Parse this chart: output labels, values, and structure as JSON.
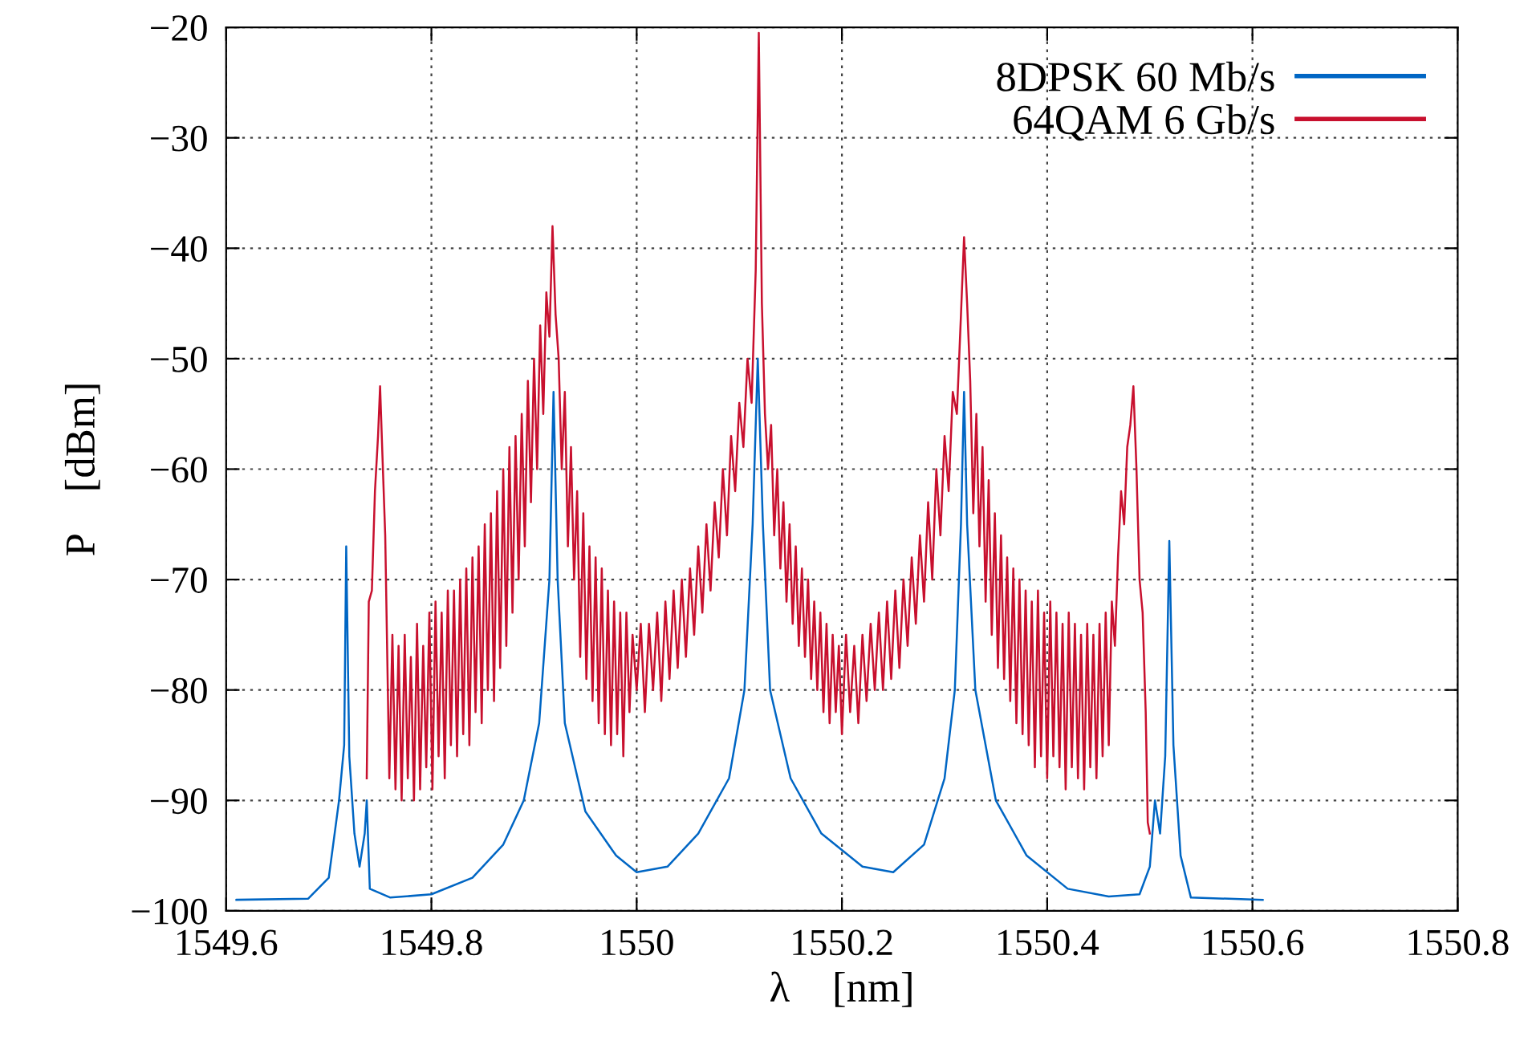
{
  "chart_data": {
    "type": "line",
    "xlabel": "λ    [nm]",
    "ylabel": "P    [dBm]",
    "xlim": [
      1549.6,
      1550.8
    ],
    "xticks": [
      1549.6,
      1549.8,
      1550,
      1550.2,
      1550.4,
      1550.6,
      1550.8
    ],
    "ylim": [
      -100,
      -20
    ],
    "yticks": [
      -100,
      -90,
      -80,
      -70,
      -60,
      -50,
      -40,
      -30,
      -20
    ],
    "grid": true,
    "legend": "top right",
    "line_style": "solid",
    "marker": "none",
    "series": [
      {
        "name": "8DPSK 60 Mb/s",
        "color": "#0066c4",
        "x": [
          1549.61,
          1549.68,
          1549.7,
          1549.71,
          1549.715,
          1549.717,
          1549.72,
          1549.725,
          1549.73,
          1549.735,
          1549.737,
          1549.74,
          1549.76,
          1549.8,
          1549.84,
          1549.87,
          1549.89,
          1549.905,
          1549.915,
          1549.919,
          1549.923,
          1549.93,
          1549.95,
          1549.98,
          1550.0,
          1550.03,
          1550.06,
          1550.09,
          1550.105,
          1550.113,
          1550.118,
          1550.123,
          1550.13,
          1550.15,
          1550.18,
          1550.22,
          1550.25,
          1550.28,
          1550.3,
          1550.31,
          1550.316,
          1550.319,
          1550.322,
          1550.33,
          1550.35,
          1550.38,
          1550.42,
          1550.46,
          1550.49,
          1550.5,
          1550.505,
          1550.51,
          1550.515,
          1550.519,
          1550.523,
          1550.53,
          1550.54,
          1550.61
        ],
        "values": [
          -99,
          -98.9,
          -97,
          -90,
          -85,
          -67,
          -86,
          -93,
          -96,
          -93,
          -90,
          -98,
          -98.8,
          -98.5,
          -97,
          -94,
          -90,
          -83,
          -70,
          -53,
          -70,
          -83,
          -91,
          -95,
          -96.5,
          -96,
          -93,
          -88,
          -80,
          -65,
          -50,
          -65,
          -80,
          -88,
          -93,
          -96,
          -96.5,
          -94,
          -88,
          -80,
          -65,
          -53,
          -65,
          -80,
          -90,
          -95,
          -98,
          -98.7,
          -98.5,
          -96,
          -90,
          -93,
          -86,
          -66.5,
          -85,
          -95,
          -98.8,
          -99
        ]
      },
      {
        "name": "64QAM 6 Gb/s",
        "color": "#c8102e",
        "x": [
          1549.737,
          1549.739,
          1549.742,
          1549.745,
          1549.748,
          1549.75,
          1549.752,
          1549.755,
          1549.757,
          1549.759,
          1549.762,
          1549.765,
          1549.768,
          1549.771,
          1549.774,
          1549.777,
          1549.78,
          1549.783,
          1549.786,
          1549.789,
          1549.792,
          1549.795,
          1549.798,
          1549.801,
          1549.804,
          1549.807,
          1549.81,
          1549.813,
          1549.816,
          1549.819,
          1549.822,
          1549.825,
          1549.828,
          1549.831,
          1549.834,
          1549.837,
          1549.84,
          1549.843,
          1549.846,
          1549.849,
          1549.852,
          1549.855,
          1549.858,
          1549.861,
          1549.864,
          1549.867,
          1549.87,
          1549.873,
          1549.876,
          1549.879,
          1549.882,
          1549.885,
          1549.888,
          1549.891,
          1549.894,
          1549.897,
          1549.9,
          1549.903,
          1549.906,
          1549.909,
          1549.912,
          1549.915,
          1549.918,
          1549.921,
          1549.924,
          1549.927,
          1549.93,
          1549.933,
          1549.936,
          1549.939,
          1549.942,
          1549.945,
          1549.948,
          1549.951,
          1549.954,
          1549.957,
          1549.96,
          1549.963,
          1549.966,
          1549.969,
          1549.972,
          1549.975,
          1549.978,
          1549.981,
          1549.984,
          1549.987,
          1549.99,
          1549.993,
          1549.996,
          1550.0,
          1550.004,
          1550.008,
          1550.012,
          1550.016,
          1550.02,
          1550.024,
          1550.028,
          1550.032,
          1550.036,
          1550.04,
          1550.044,
          1550.048,
          1550.052,
          1550.056,
          1550.06,
          1550.064,
          1550.068,
          1550.072,
          1550.076,
          1550.08,
          1550.084,
          1550.088,
          1550.092,
          1550.096,
          1550.1,
          1550.104,
          1550.108,
          1550.112,
          1550.116,
          1550.119,
          1550.122,
          1550.125,
          1550.128,
          1550.131,
          1550.134,
          1550.137,
          1550.14,
          1550.143,
          1550.146,
          1550.149,
          1550.152,
          1550.155,
          1550.158,
          1550.161,
          1550.164,
          1550.167,
          1550.17,
          1550.173,
          1550.176,
          1550.179,
          1550.182,
          1550.185,
          1550.188,
          1550.191,
          1550.194,
          1550.197,
          1550.2,
          1550.204,
          1550.208,
          1550.212,
          1550.216,
          1550.22,
          1550.224,
          1550.228,
          1550.232,
          1550.236,
          1550.24,
          1550.244,
          1550.248,
          1550.252,
          1550.256,
          1550.26,
          1550.264,
          1550.268,
          1550.272,
          1550.276,
          1550.28,
          1550.284,
          1550.288,
          1550.292,
          1550.296,
          1550.3,
          1550.304,
          1550.308,
          1550.312,
          1550.316,
          1550.319,
          1550.322,
          1550.325,
          1550.328,
          1550.331,
          1550.334,
          1550.337,
          1550.34,
          1550.343,
          1550.346,
          1550.349,
          1550.352,
          1550.355,
          1550.358,
          1550.361,
          1550.364,
          1550.367,
          1550.37,
          1550.373,
          1550.376,
          1550.379,
          1550.382,
          1550.385,
          1550.388,
          1550.391,
          1550.394,
          1550.397,
          1550.4,
          1550.403,
          1550.406,
          1550.409,
          1550.412,
          1550.415,
          1550.418,
          1550.421,
          1550.424,
          1550.427,
          1550.43,
          1550.433,
          1550.436,
          1550.439,
          1550.442,
          1550.445,
          1550.448,
          1550.451,
          1550.454,
          1550.457,
          1550.46,
          1550.463,
          1550.466,
          1550.469,
          1550.472,
          1550.475,
          1550.478,
          1550.481,
          1550.484,
          1550.487,
          1550.49,
          1550.493,
          1550.496,
          1550.498,
          1550.5
        ],
        "values": [
          -88,
          -72,
          -71,
          -62,
          -57,
          -52.5,
          -58,
          -66,
          -77,
          -88,
          -75,
          -89,
          -76,
          -90,
          -75,
          -88,
          -77,
          -90,
          -74,
          -89,
          -76,
          -87,
          -73,
          -89,
          -72,
          -86,
          -73,
          -88,
          -71,
          -85,
          -71,
          -86,
          -70,
          -84,
          -69,
          -85,
          -68,
          -82,
          -67,
          -83,
          -65,
          -80,
          -64,
          -81,
          -62,
          -78,
          -60,
          -76,
          -58,
          -73,
          -57,
          -70,
          -55,
          -67,
          -52,
          -63,
          -50,
          -60,
          -47,
          -55,
          -44,
          -48,
          -38,
          -46,
          -50,
          -60,
          -53,
          -67,
          -58,
          -70,
          -62,
          -77,
          -64,
          -79,
          -67,
          -81,
          -68,
          -83,
          -69,
          -84,
          -71,
          -85,
          -72,
          -84,
          -73,
          -86,
          -73,
          -82,
          -75,
          -80,
          -74,
          -82,
          -74,
          -80,
          -73,
          -81,
          -72,
          -79,
          -71,
          -78,
          -70,
          -77,
          -69,
          -75,
          -67,
          -73,
          -65,
          -71,
          -63,
          -68,
          -60,
          -66,
          -57,
          -62,
          -54,
          -58,
          -50,
          -54,
          -42,
          -20.5,
          -45,
          -55,
          -60,
          -56,
          -66,
          -60,
          -69,
          -63,
          -72,
          -65,
          -74,
          -67,
          -76,
          -69,
          -77,
          -70,
          -79,
          -72,
          -80,
          -73,
          -82,
          -74,
          -83,
          -75,
          -82,
          -76,
          -84,
          -75,
          -82,
          -76,
          -83,
          -75,
          -81,
          -74,
          -80,
          -73,
          -80,
          -72,
          -79,
          -71,
          -78,
          -70,
          -76,
          -68,
          -74,
          -66,
          -72,
          -63,
          -70,
          -60,
          -66,
          -57,
          -62,
          -53,
          -55,
          -46,
          -39,
          -45,
          -52,
          -64,
          -55,
          -67,
          -58,
          -72,
          -61,
          -75,
          -64,
          -78,
          -66,
          -79,
          -68,
          -81,
          -69,
          -83,
          -70,
          -84,
          -71,
          -85,
          -72,
          -87,
          -71,
          -86,
          -73,
          -88,
          -72,
          -86,
          -73,
          -87,
          -74,
          -89,
          -73,
          -87,
          -74,
          -88,
          -75,
          -89,
          -74,
          -87,
          -75,
          -88,
          -74,
          -86,
          -73,
          -85,
          -72,
          -76,
          -68,
          -62,
          -65,
          -58,
          -56,
          -52.5,
          -60,
          -70,
          -73,
          -82,
          -92,
          -93
        ]
      }
    ]
  }
}
